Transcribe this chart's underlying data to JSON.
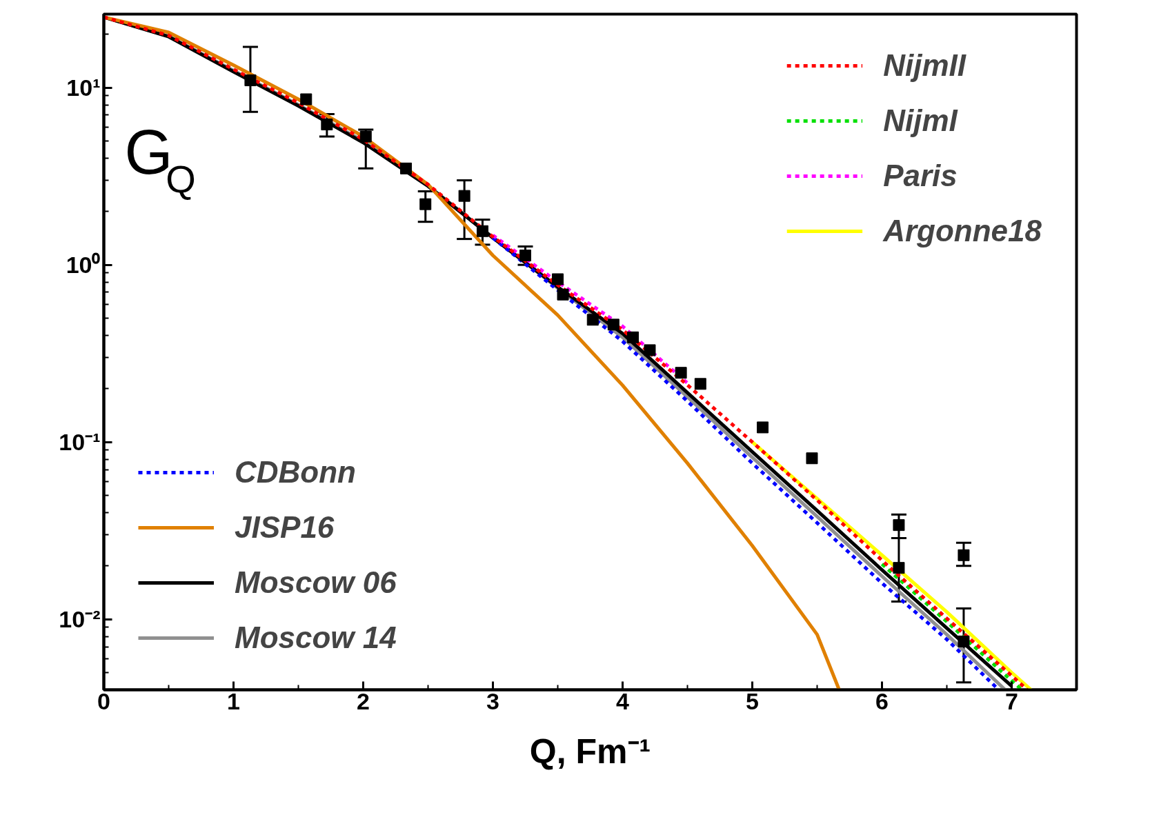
{
  "chart_data": {
    "type": "line",
    "xlabel": "Q, Fm⁻¹",
    "annotations": [
      "G$_{Q}$"
    ],
    "log": "y",
    "xlim": [
      0,
      7.5
    ],
    "ylim": [
      0.004,
      26
    ],
    "xticks": [
      0,
      1,
      2,
      3,
      4,
      5,
      6,
      7
    ],
    "yticks": [
      {
        "value": 0.01,
        "label": "10⁻²"
      },
      {
        "value": 0.1,
        "label": "10⁻¹"
      },
      {
        "value": 1,
        "label": "10⁰"
      },
      {
        "value": 10,
        "label": "10¹"
      }
    ],
    "grid": false,
    "legend": [
      "top right",
      "bottom left"
    ],
    "series": [
      {
        "name": "NijmII",
        "color": "#ff0000",
        "line_style": "dashed",
        "x": [
          0,
          0.5,
          1,
          1.5,
          2,
          2.5,
          3,
          3.5,
          4,
          4.5,
          5,
          5.5,
          6,
          6.5,
          7,
          7.12
        ],
        "values": [
          25,
          19.7,
          12.7,
          8.2,
          5.1,
          2.84,
          1.44,
          0.77,
          0.43,
          0.21,
          0.1,
          0.047,
          0.0215,
          0.0101,
          0.0048,
          0.004
        ]
      },
      {
        "name": "NijmI",
        "color": "#00e000",
        "line_style": "dashed",
        "x": [
          6,
          6.5,
          7,
          7.08
        ],
        "values": [
          0.0205,
          0.0097,
          0.0045,
          0.004
        ]
      },
      {
        "name": "Paris",
        "color": "#ff00ff",
        "line_style": "dashed",
        "x": [
          3,
          3.5,
          4,
          4.5
        ],
        "values": [
          1.47,
          0.8,
          0.45,
          0.215
        ]
      },
      {
        "name": "Argonne18",
        "color": "#ffff00",
        "line_style": "solid",
        "x": [
          5,
          5.5,
          6,
          6.5,
          7,
          7.15
        ],
        "values": [
          0.1,
          0.048,
          0.023,
          0.011,
          0.005,
          0.004
        ]
      },
      {
        "name": "CDBonn",
        "color": "#0000ff",
        "line_style": "dashed",
        "x": [
          3,
          3.5,
          4,
          4.5,
          5,
          5.5,
          6,
          6.5,
          6.9
        ],
        "values": [
          1.42,
          0.72,
          0.37,
          0.17,
          0.076,
          0.035,
          0.016,
          0.0077,
          0.004
        ]
      },
      {
        "name": "JISP16",
        "color": "#e08000",
        "line_style": "solid",
        "x": [
          0,
          0.5,
          1,
          1.5,
          2,
          2.5,
          3,
          3.5,
          4,
          4.5,
          5,
          5.5,
          5.67
        ],
        "values": [
          25,
          20.5,
          13.4,
          8.6,
          5.3,
          2.84,
          1.13,
          0.52,
          0.209,
          0.076,
          0.026,
          0.0082,
          0.004
        ]
      },
      {
        "name": "Moscow 06",
        "color": "#000000",
        "line_style": "solid",
        "x": [
          0,
          0.5,
          1,
          1.5,
          2,
          2.5,
          3,
          3.5,
          4,
          4.5,
          5,
          5.5,
          6,
          6.5,
          7
        ],
        "values": [
          25,
          19.4,
          12.3,
          7.9,
          4.9,
          2.78,
          1.42,
          0.75,
          0.41,
          0.19,
          0.088,
          0.041,
          0.019,
          0.0089,
          0.0042
        ]
      },
      {
        "name": "Moscow 14",
        "color": "#909090",
        "line_style": "solid",
        "x": [
          0,
          0.5,
          1,
          1.5,
          2,
          2.5,
          3,
          3.5,
          4,
          4.5,
          5,
          5.5,
          6,
          6.5,
          6.95
        ],
        "values": [
          25,
          19.5,
          12.5,
          8.0,
          5.0,
          2.8,
          1.43,
          0.74,
          0.39,
          0.18,
          0.082,
          0.038,
          0.0175,
          0.0082,
          0.004
        ]
      },
      {
        "type": "scatter",
        "marker": "square",
        "color": "#000000",
        "x": [
          1.13,
          1.56,
          1.72,
          2.02,
          2.33,
          2.48,
          2.78,
          2.92,
          3.25,
          3.5,
          3.54,
          3.77,
          3.93,
          4.08,
          4.21,
          4.45,
          4.6,
          5.08,
          5.46,
          6.13,
          6.13,
          6.63,
          6.63
        ],
        "values": [
          11,
          8.6,
          6.2,
          5.3,
          3.5,
          2.2,
          2.45,
          1.55,
          1.13,
          0.83,
          0.68,
          0.49,
          0.46,
          0.39,
          0.33,
          0.246,
          0.213,
          0.121,
          0.081,
          0.034,
          0.0195,
          0.023,
          0.0075
        ],
        "errors": [
          [
            7.3,
            17
          ],
          null,
          [
            5.3,
            7.1
          ],
          [
            3.5,
            5.8
          ],
          null,
          [
            1.75,
            2.6
          ],
          [
            1.4,
            3.0
          ],
          [
            1.3,
            1.8
          ],
          [
            1.0,
            1.27
          ],
          null,
          null,
          null,
          null,
          null,
          null,
          null,
          null,
          null,
          null,
          [
            0.0287,
            0.039
          ],
          [
            0.0126,
            0.0287
          ],
          [
            0.02,
            0.027
          ],
          [
            0.0044,
            0.0115
          ]
        ]
      }
    ]
  }
}
